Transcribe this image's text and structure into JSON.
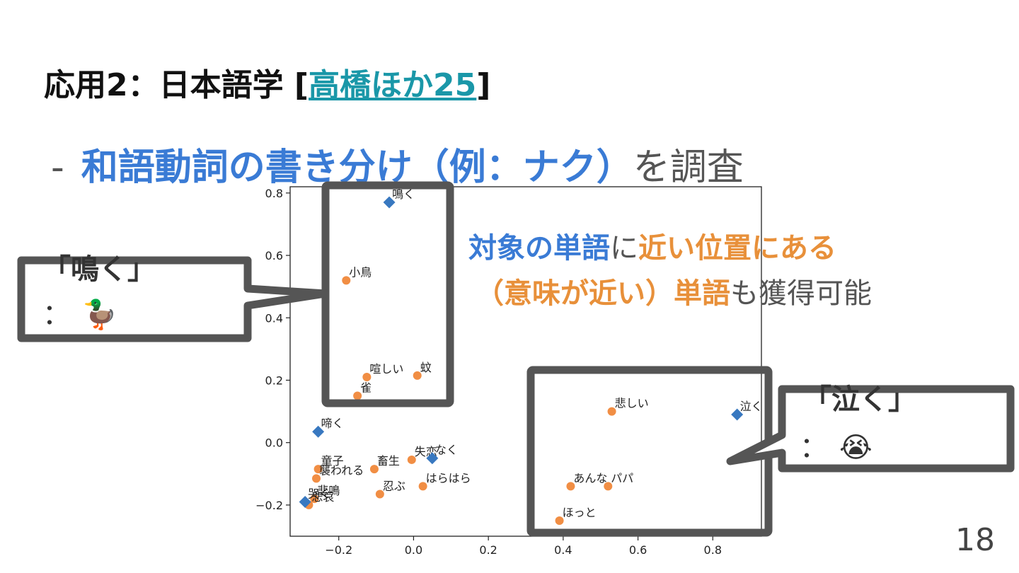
{
  "slide": {
    "title_prefix": "応用2：日本語学 [",
    "title_cite": "高橋ほか25",
    "title_suffix": "]",
    "bullet_dash": "-",
    "bullet_highlight": "和語動詞の書き分け（例：ナク）",
    "bullet_rest": "を調査",
    "note_line1_a": "対象の単語",
    "note_line1_b": "に",
    "note_line1_c": "近い位置にある",
    "note_line2_a": "（意味が近い）単語",
    "note_line2_b": "も獲得可能",
    "callout_left_label": "「鳴く」",
    "callout_left_sub": "：",
    "callout_left_icon": "duck-emoji",
    "callout_left_glyph": "🦆",
    "callout_right_label": "「泣く」",
    "callout_right_sub": "：",
    "callout_right_icon": "crying-face-emoji",
    "callout_right_glyph": "😭",
    "page_number": "18"
  },
  "colors": {
    "blue_highlight": "#3a7bd5",
    "orange_highlight": "#e8903a",
    "cite_link": "#1a97a8",
    "point_orange": "#f0883a",
    "point_blue": "#3878c0",
    "box_gray": "#555555"
  },
  "chart_data": {
    "type": "scatter",
    "xlim": [
      -0.33,
      0.93
    ],
    "ylim": [
      -0.3,
      0.82
    ],
    "xticks": [
      -0.2,
      0.0,
      0.2,
      0.4,
      0.6,
      0.8
    ],
    "yticks": [
      -0.2,
      0.0,
      0.2,
      0.4,
      0.6,
      0.8
    ],
    "xtick_labels": [
      "−0.2",
      "0.0",
      "0.2",
      "0.4",
      "0.6",
      "0.8"
    ],
    "ytick_labels": [
      "−0.2",
      "0.0",
      "0.2",
      "0.4",
      "0.6",
      "0.8"
    ],
    "series": [
      {
        "marker": "circle",
        "color": "#f0883a",
        "points": [
          {
            "x": -0.18,
            "y": 0.52,
            "label": "小鳥"
          },
          {
            "x": -0.125,
            "y": 0.21,
            "label": "喧しい"
          },
          {
            "x": 0.01,
            "y": 0.215,
            "label": "蚊"
          },
          {
            "x": -0.15,
            "y": 0.15,
            "label": "雀"
          },
          {
            "x": -0.255,
            "y": -0.085,
            "label": "童子"
          },
          {
            "x": -0.26,
            "y": -0.115,
            "label": "襲われる"
          },
          {
            "x": -0.105,
            "y": -0.085,
            "label": "畜生"
          },
          {
            "x": -0.005,
            "y": -0.055,
            "label": "失恋"
          },
          {
            "x": -0.09,
            "y": -0.165,
            "label": "忍ぶ"
          },
          {
            "x": 0.025,
            "y": -0.14,
            "label": "はらはら"
          },
          {
            "x": -0.265,
            "y": -0.18,
            "label": "悲鳴"
          },
          {
            "x": -0.28,
            "y": -0.2,
            "label": "悲哀"
          },
          {
            "x": 0.53,
            "y": 0.1,
            "label": "悲しい"
          },
          {
            "x": 0.42,
            "y": -0.14,
            "label": "あんな"
          },
          {
            "x": 0.52,
            "y": -0.14,
            "label": "パパ"
          },
          {
            "x": 0.39,
            "y": -0.25,
            "label": "ほっと"
          }
        ]
      },
      {
        "marker": "diamond",
        "color": "#3878c0",
        "points": [
          {
            "x": -0.065,
            "y": 0.77,
            "label": "鳴く"
          },
          {
            "x": -0.255,
            "y": 0.035,
            "label": "啼く"
          },
          {
            "x": 0.05,
            "y": -0.05,
            "label": "なく"
          },
          {
            "x": -0.29,
            "y": -0.19,
            "label": "哭く"
          },
          {
            "x": 0.865,
            "y": 0.09,
            "label": "泣く"
          }
        ]
      }
    ]
  }
}
